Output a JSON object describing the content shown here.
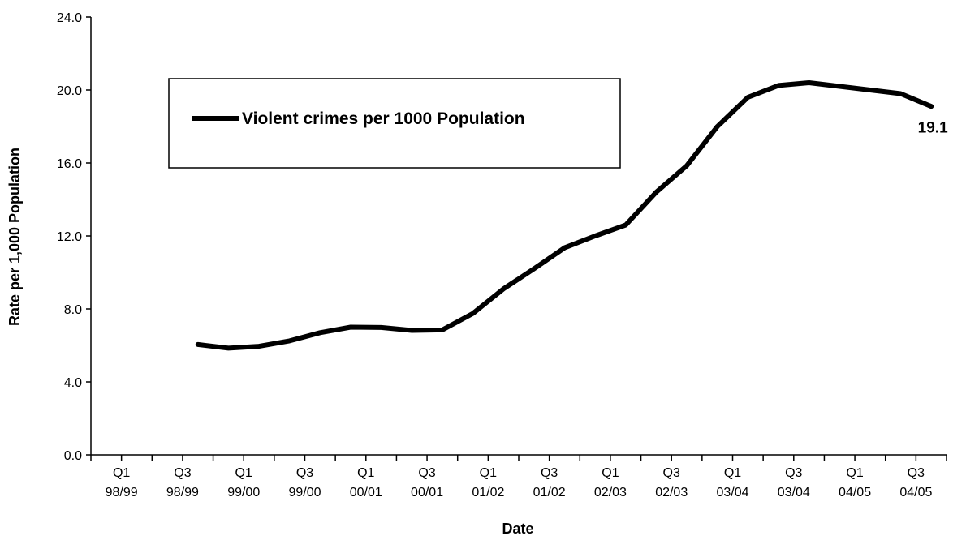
{
  "chart_data": {
    "type": "line",
    "title": "",
    "xlabel": "Date",
    "ylabel": "Rate per 1,000 Population",
    "ylim": [
      0,
      24
    ],
    "y_ticks": [
      "0.0",
      "4.0",
      "8.0",
      "12.0",
      "16.0",
      "20.0",
      "24.0"
    ],
    "x_tick_labels": [
      [
        "Q1",
        "98/99"
      ],
      [
        "Q3",
        "98/99"
      ],
      [
        "Q1",
        "99/00"
      ],
      [
        "Q3",
        "99/00"
      ],
      [
        "Q1",
        "00/01"
      ],
      [
        "Q3",
        "00/01"
      ],
      [
        "Q1",
        "01/02"
      ],
      [
        "Q3",
        "01/02"
      ],
      [
        "Q1",
        "02/03"
      ],
      [
        "Q3",
        "02/03"
      ],
      [
        "Q1",
        "03/04"
      ],
      [
        "Q3",
        "03/04"
      ],
      [
        "Q1",
        "04/05"
      ],
      [
        "Q3",
        "04/05"
      ]
    ],
    "legend": {
      "position": "top-left",
      "entries": [
        "Violent crimes per 1000 Population"
      ]
    },
    "series": [
      {
        "name": "Violent crimes per 1000 Population",
        "color": "#000000",
        "values": [
          null,
          null,
          null,
          6.05,
          5.85,
          5.95,
          6.25,
          6.7,
          7.0,
          6.98,
          6.82,
          6.85,
          7.75,
          9.1,
          10.2,
          11.35,
          12.0,
          12.6,
          14.4,
          15.85,
          18.0,
          19.6,
          20.25,
          20.4,
          20.2,
          20.0,
          19.8,
          19.1
        ]
      }
    ],
    "annotations": [
      {
        "text": "19.1",
        "series_index": 0,
        "point_index": 27
      }
    ]
  }
}
